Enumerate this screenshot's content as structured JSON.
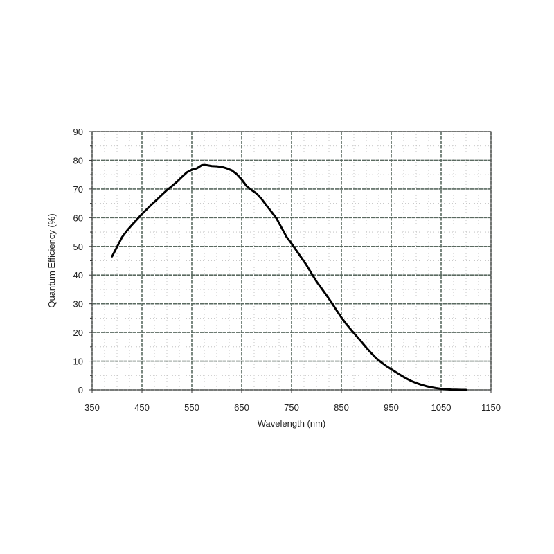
{
  "chart_data": {
    "type": "line",
    "title": "",
    "xlabel": "Wavelength (nm)",
    "ylabel": "Quantum Efficiency (%)",
    "xlim": [
      350,
      1150
    ],
    "ylim": [
      0,
      90
    ],
    "xticks": [
      350,
      450,
      550,
      650,
      750,
      850,
      950,
      1050,
      1150
    ],
    "yticks": [
      0,
      10,
      20,
      30,
      40,
      50,
      60,
      70,
      80,
      90
    ],
    "x_minor_step": 25,
    "y_minor_step": 5,
    "grid": true,
    "legend": "none",
    "series": [
      {
        "color": "#000000",
        "x": [
          390,
          400,
          410,
          420,
          430,
          440,
          450,
          460,
          470,
          480,
          490,
          500,
          510,
          520,
          530,
          540,
          550,
          560,
          570,
          575,
          580,
          590,
          600,
          610,
          620,
          630,
          640,
          650,
          660,
          670,
          680,
          690,
          700,
          710,
          720,
          730,
          740,
          750,
          760,
          770,
          780,
          790,
          800,
          810,
          820,
          830,
          840,
          850,
          860,
          870,
          880,
          890,
          900,
          910,
          920,
          930,
          940,
          950,
          960,
          970,
          980,
          990,
          1000,
          1010,
          1020,
          1030,
          1040,
          1050,
          1060,
          1070,
          1080,
          1090,
          1100
        ],
        "y": [
          46.5,
          49.8,
          53.2,
          55.5,
          57.5,
          59.4,
          61.3,
          63.0,
          64.7,
          66.3,
          68.0,
          69.6,
          71.0,
          72.5,
          74.2,
          75.8,
          76.7,
          77.2,
          78.3,
          78.4,
          78.3,
          78.0,
          77.9,
          77.7,
          77.2,
          76.5,
          75.2,
          73.3,
          71.0,
          69.6,
          68.4,
          66.5,
          64.2,
          62.0,
          59.7,
          56.5,
          53.3,
          51.0,
          48.5,
          46.0,
          43.5,
          40.6,
          37.8,
          35.4,
          33.0,
          30.5,
          27.8,
          25.2,
          22.9,
          20.8,
          18.8,
          16.8,
          14.7,
          12.8,
          11.0,
          9.6,
          8.3,
          7.2,
          6.1,
          5.0,
          4.0,
          3.1,
          2.4,
          1.8,
          1.3,
          0.9,
          0.6,
          0.35,
          0.2,
          0.1,
          0.05,
          0.0,
          0.0
        ]
      }
    ]
  }
}
